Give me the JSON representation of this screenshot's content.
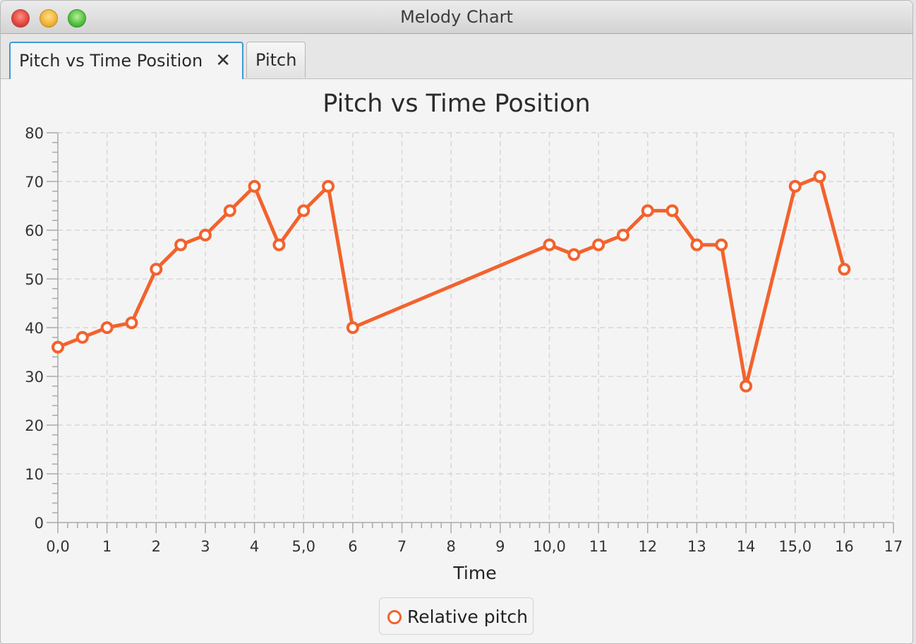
{
  "window": {
    "title": "Melody Chart"
  },
  "tabs": [
    {
      "label": "Pitch vs Time Position",
      "close_glyph": "✕",
      "active": true
    },
    {
      "label": "Pitch",
      "active": false
    }
  ],
  "colors": {
    "series": "#f3622d",
    "grid": "#d6d6d6",
    "accent_tab": "#3c9ad7"
  },
  "chart_data": {
    "type": "line",
    "title": "Pitch vs Time Position",
    "xlabel": "Time",
    "ylabel": "",
    "xlim": [
      0,
      17
    ],
    "ylim": [
      0,
      80
    ],
    "x_ticks": [
      0,
      1,
      2,
      3,
      4,
      5,
      6,
      7,
      8,
      9,
      10,
      11,
      12,
      13,
      14,
      15,
      16,
      17
    ],
    "x_tick_labels": [
      "0,0",
      "1",
      "2",
      "3",
      "4",
      "5,0",
      "6",
      "7",
      "8",
      "9",
      "10,0",
      "11",
      "12",
      "13",
      "14",
      "15,0",
      "16",
      "17"
    ],
    "y_ticks": [
      0,
      10,
      20,
      30,
      40,
      50,
      60,
      70,
      80
    ],
    "y_tick_labels": [
      "0",
      "10",
      "20",
      "30",
      "40",
      "50",
      "60",
      "70",
      "80"
    ],
    "grid": true,
    "legend_position": "bottom-center",
    "series": [
      {
        "name": "Relative pitch",
        "x": [
          0,
          0.5,
          1,
          1.5,
          2,
          2.5,
          3,
          3.5,
          4,
          4.5,
          5,
          5.5,
          6,
          10,
          10.5,
          11,
          11.5,
          12,
          12.5,
          13,
          13.5,
          14,
          15,
          15.5,
          16
        ],
        "y": [
          36,
          38,
          40,
          41,
          52,
          57,
          59,
          64,
          69,
          57,
          64,
          69,
          40,
          57,
          55,
          57,
          59,
          64,
          64,
          57,
          57,
          28,
          69,
          71,
          52
        ]
      }
    ]
  }
}
